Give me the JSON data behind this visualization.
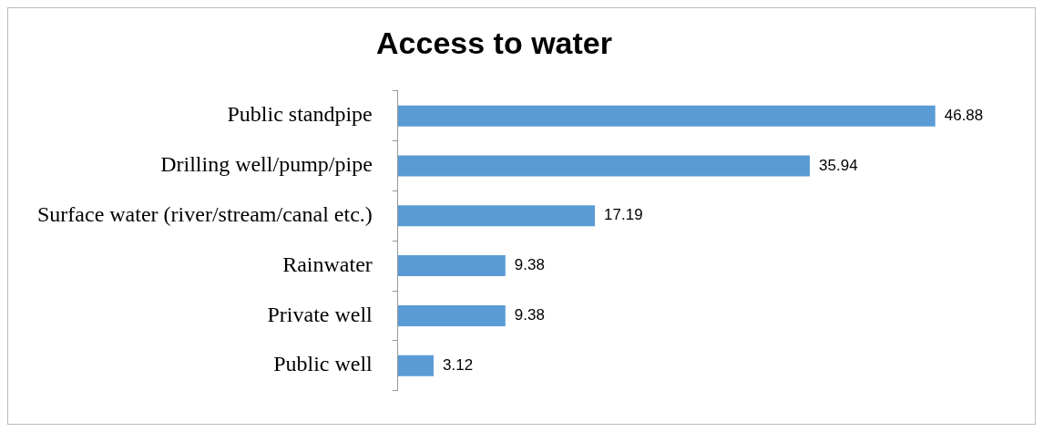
{
  "chart_data": {
    "type": "bar",
    "orientation": "horizontal",
    "title": "Access to water",
    "categories": [
      "Public standpipe",
      "Drilling well/pump/pipe",
      "Surface water (river/stream/canal etc.)",
      "Rainwater",
      "Private well",
      "Public well"
    ],
    "values": [
      46.88,
      35.94,
      17.19,
      9.38,
      9.38,
      3.12
    ],
    "color": "#5b9bd5",
    "data_labels": true
  }
}
